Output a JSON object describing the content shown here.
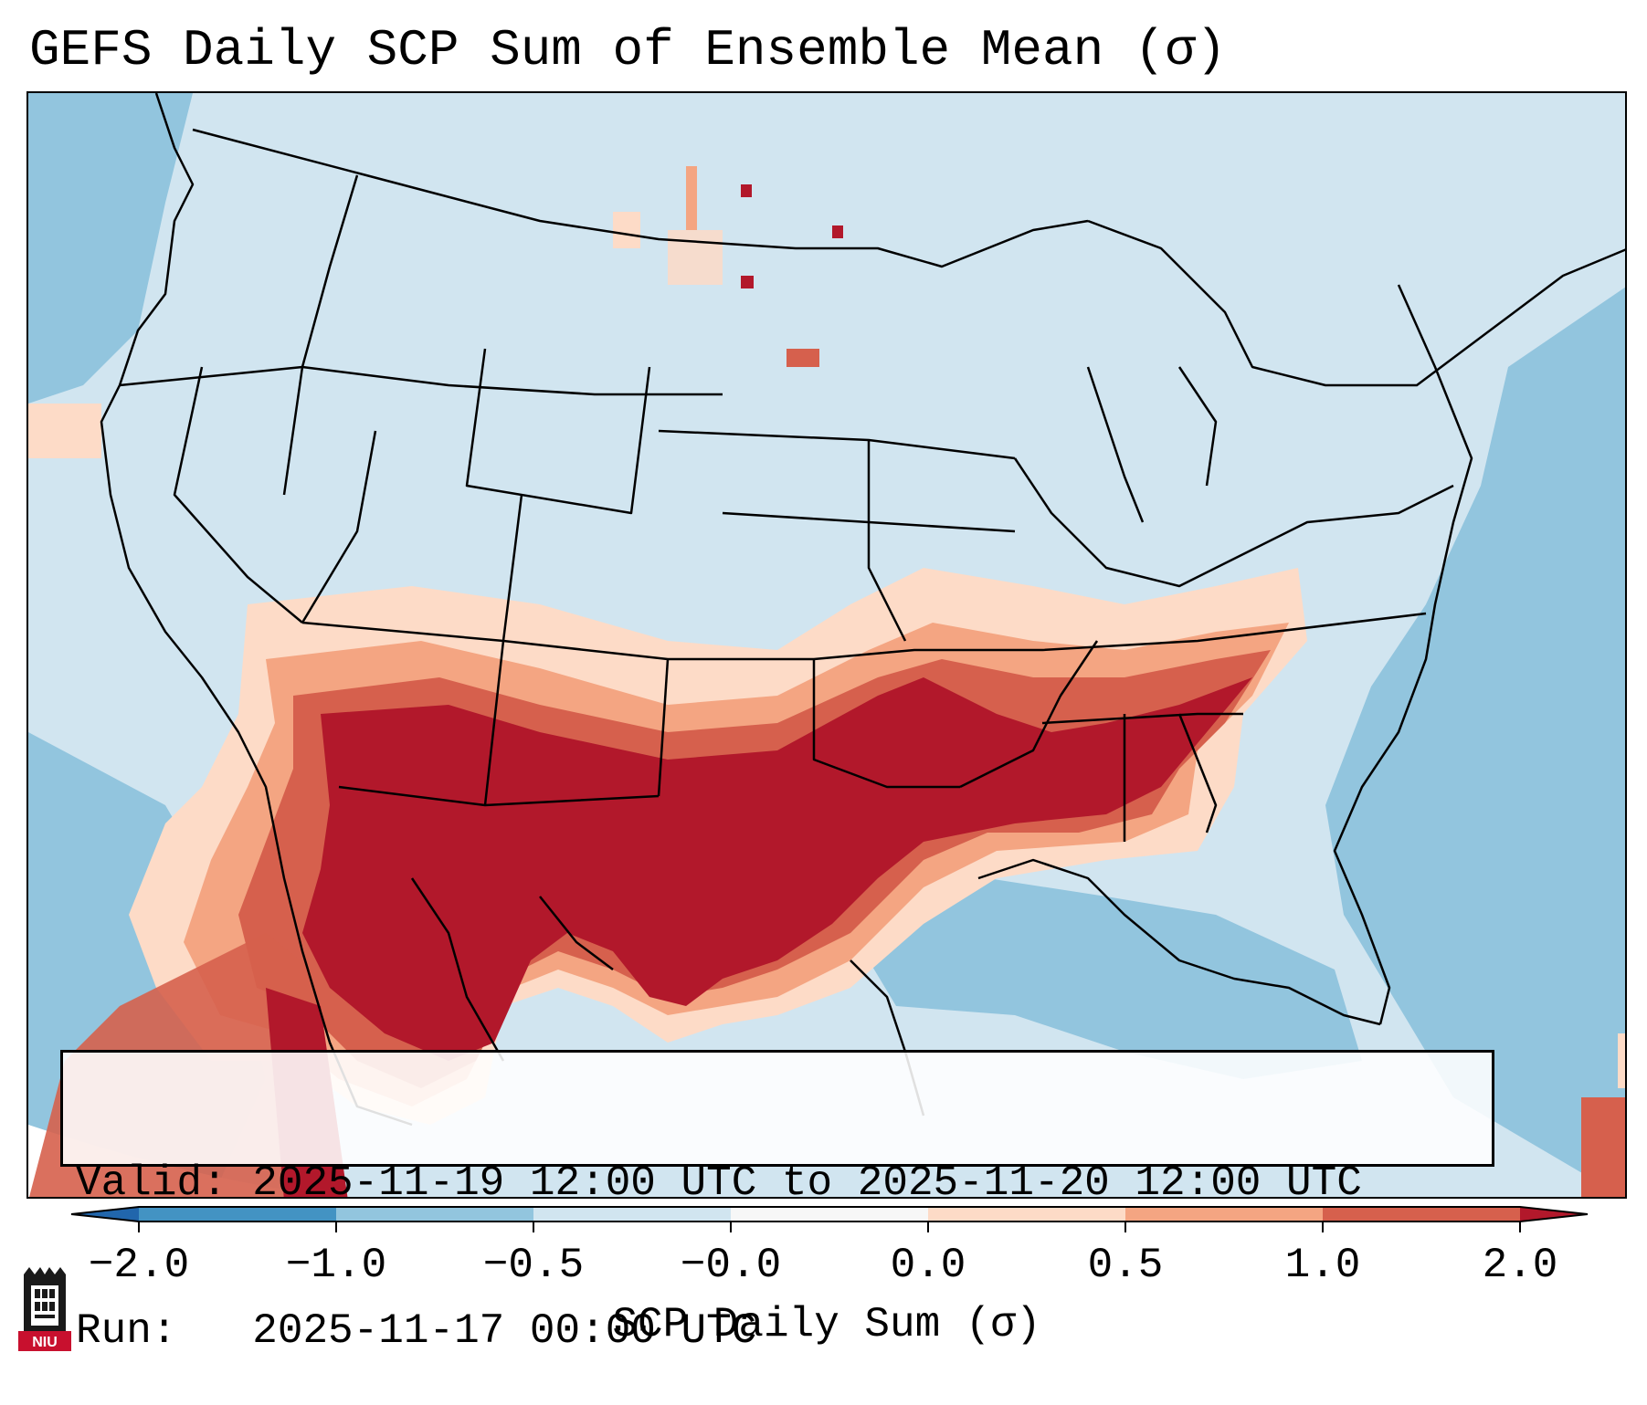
{
  "title": "GEFS Daily SCP Sum of Ensemble Mean (σ)",
  "info": {
    "valid_line": "Valid: 2025-11-19 12:00 UTC to 2025-11-20 12:00 UTC",
    "run_line": "Run:   2025-11-17 00:00 UTC"
  },
  "colorbar": {
    "label": "SCP Daily Sum (σ)",
    "ticks": [
      "−2.0",
      "−1.0",
      "−0.5",
      "−0.0",
      "0.0",
      "0.5",
      "1.0",
      "2.0"
    ],
    "bins": [
      {
        "from": "-2.0",
        "to": "-1.0",
        "color": "#4393c3"
      },
      {
        "from": "-1.0",
        "to": "-0.5",
        "color": "#92c5de"
      },
      {
        "from": "-0.5",
        "to": "-0.0",
        "color": "#d1e5f0"
      },
      {
        "from": "-0.0",
        "to": "0.0",
        "color": "#f7f7f7"
      },
      {
        "from": "0.0",
        "to": "0.5",
        "color": "#fddbc7"
      },
      {
        "from": "0.5",
        "to": "1.0",
        "color": "#f4a582"
      },
      {
        "from": "1.0",
        "to": "2.0",
        "color": "#d6604d"
      }
    ],
    "under_color": "#2166ac",
    "over_color": "#b2182b"
  },
  "colors": {
    "ocean": "#92c5de",
    "land": "#d1e5f0",
    "light_orange": "#fddbc7",
    "orange": "#f4a582",
    "red": "#d6604d",
    "dark_red": "#b2182b",
    "border": "#000000"
  },
  "logo": {
    "text": "NIU"
  }
}
